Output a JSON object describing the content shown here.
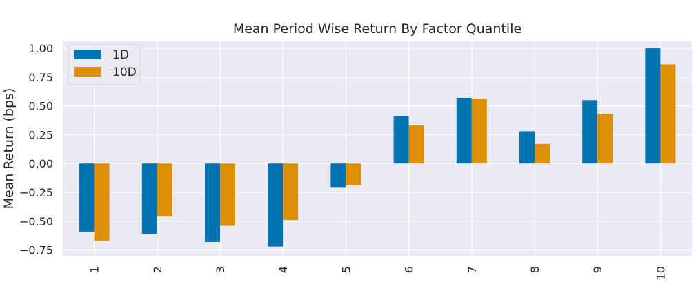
{
  "chart_data": {
    "type": "bar",
    "title": "Mean Period Wise Return By Factor Quantile",
    "xlabel": "",
    "ylabel": "Mean Return (bps)",
    "categories": [
      "1",
      "2",
      "3",
      "4",
      "5",
      "6",
      "7",
      "8",
      "9",
      "10"
    ],
    "series": [
      {
        "name": "1D",
        "color": "#0173b2",
        "values": [
          -0.59,
          -0.61,
          -0.68,
          -0.72,
          -0.21,
          0.41,
          0.57,
          0.28,
          0.55,
          1.0
        ]
      },
      {
        "name": "10D",
        "color": "#de8f05",
        "values": [
          -0.67,
          -0.46,
          -0.54,
          -0.49,
          -0.19,
          0.33,
          0.56,
          0.17,
          0.43,
          0.86
        ]
      }
    ],
    "ylim": [
      -0.8,
      1.06
    ],
    "yticks": [
      "1.00",
      "0.75",
      "0.50",
      "0.25",
      "0.00",
      "−0.25",
      "−0.50",
      "−0.75"
    ],
    "ytick_values": [
      1.0,
      0.75,
      0.5,
      0.25,
      0.0,
      -0.25,
      -0.5,
      -0.75
    ],
    "grid": true,
    "legend": "top-left",
    "background_color": "#eaeaf2",
    "grid_color": "#ffffff"
  }
}
